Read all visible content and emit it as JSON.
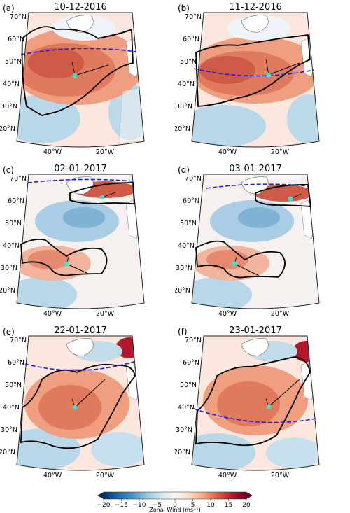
{
  "figure": {
    "panels": [
      {
        "letter": "(a)",
        "date": "10-12-2016"
      },
      {
        "letter": "(b)",
        "date": "11-12-2016"
      },
      {
        "letter": "(c)",
        "date": "02-01-2017"
      },
      {
        "letter": "(d)",
        "date": "03-01-2017"
      },
      {
        "letter": "(e)",
        "date": "22-01-2017"
      },
      {
        "letter": "(f)",
        "date": "23-01-2017"
      }
    ],
    "lat_labels": [
      "70°N",
      "60°N",
      "50°N",
      "40°N",
      "30°N",
      "20°N"
    ],
    "lon_labels": [
      "40°W",
      "20°W"
    ],
    "colorbar": {
      "label": "Zonal Wind (ms⁻¹)",
      "ticks": [
        "−20",
        "−15",
        "−10",
        "−5",
        "0",
        "5",
        "10",
        "15",
        "20"
      ],
      "min": -20,
      "max": 20,
      "colors": [
        "#053061",
        "#2166ac",
        "#4393c3",
        "#92c5de",
        "#d1e5f0",
        "#f7f7f7",
        "#fddbc7",
        "#f4a582",
        "#d6604d",
        "#b2182b",
        "#67001f"
      ]
    },
    "colors": {
      "contour": "#000000",
      "dashed_line": "#1a1adc",
      "centroid": "#40e0d0",
      "land": "#ffffff"
    }
  }
}
